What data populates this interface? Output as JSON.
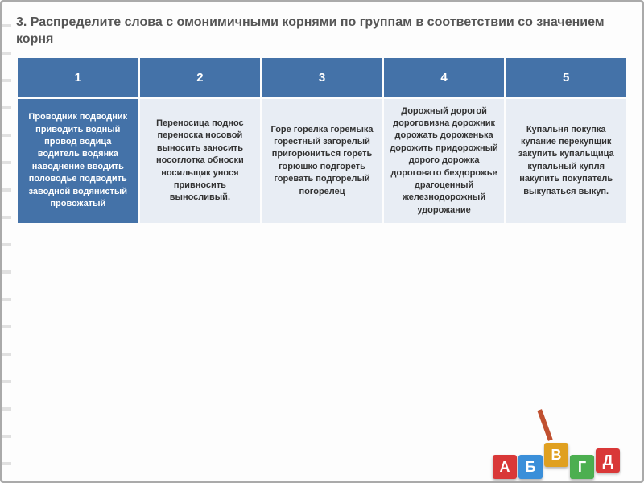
{
  "title": "3. Распределите слова с омонимичными корнями по группам в соответствии со значением корня",
  "table": {
    "headers": [
      "1",
      "2",
      "3",
      "4",
      "5"
    ],
    "columns": [
      "Проводник подводник приводить водный провод водица водитель водянка наводнение вводить половодье подводить заводной водянистый провожатый",
      "Переносица поднос переноска носовой выносить заносить носоглотка обноски носильщик унося привносить выносливый.",
      "Горе горелка горемыка горестный загорелый пригорюниться гореть горюшко подгореть горевать подгорелый погорелец",
      "Дорожный дорогой дороговизна дорожник дорожать дороженька дорожить придорожный дорого дорожка дороговато бездорожье драгоценный железнодорожный удорожание",
      "Купальня покупка купание перекупщик закупить купальщица купальный купля накупить покупатель выкупаться выкуп."
    ]
  },
  "blocks": [
    "А",
    "Б",
    "В",
    "Г",
    "Д"
  ],
  "colors": {
    "header_bg": "#4472a8",
    "cell_bg": "#e8edf4",
    "border": "#aaa"
  }
}
